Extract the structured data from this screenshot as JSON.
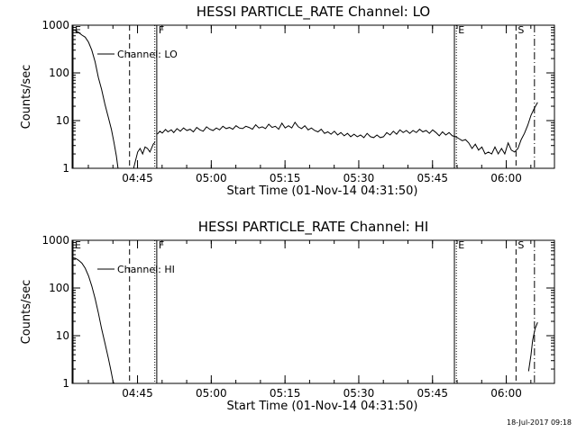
{
  "chart_data": [
    {
      "type": "line",
      "title": "HESSI PARTICLE_RATE Channel: LO",
      "xlabel": "Start Time (01-Nov-14 04:31:50)",
      "ylabel": "Counts/sec",
      "y_scale": "log",
      "ylim": [
        1,
        1000
      ],
      "xlim": [
        0,
        5886
      ],
      "x_ticks": [
        {
          "t": 798,
          "label": "04:45"
        },
        {
          "t": 1698,
          "label": "05:00"
        },
        {
          "t": 2598,
          "label": "05:15"
        },
        {
          "t": 3498,
          "label": "05:30"
        },
        {
          "t": 4398,
          "label": "05:45"
        },
        {
          "t": 5298,
          "label": "06:00"
        }
      ],
      "y_ticks": [
        {
          "v": 1,
          "label": "1"
        },
        {
          "v": 10,
          "label": "10"
        },
        {
          "v": 100,
          "label": "100"
        },
        {
          "v": 1000,
          "label": "1000"
        }
      ],
      "legend": "Channel: LO",
      "markers": [
        {
          "t": 0,
          "label": "E",
          "style": "solid"
        },
        {
          "t": 701,
          "label": "",
          "style": "dashed"
        },
        {
          "t": 1009,
          "label": "",
          "style": "dotted"
        },
        {
          "t": 1033,
          "label": "F",
          "style": "solid"
        },
        {
          "t": 4665,
          "label": "",
          "style": "solid"
        },
        {
          "t": 4689,
          "label": "E",
          "style": "dotted"
        },
        {
          "t": 5417,
          "label": "S",
          "style": "dashed"
        },
        {
          "t": 5642,
          "label": "",
          "style": "dashdot"
        }
      ],
      "series": [
        {
          "segments": [
            [
              [
                0,
                800
              ],
              [
                40,
                780
              ],
              [
                80,
                700
              ],
              [
                120,
                620
              ],
              [
                160,
                560
              ],
              [
                200,
                440
              ],
              [
                240,
                300
              ],
              [
                280,
                170
              ],
              [
                320,
                80
              ],
              [
                360,
                45
              ],
              [
                400,
                22
              ],
              [
                440,
                12
              ],
              [
                480,
                6.5
              ],
              [
                510,
                3.5
              ],
              [
                540,
                1.8
              ],
              [
                560,
                1.0
              ]
            ],
            [
              [
                750,
                1.0
              ],
              [
                800,
                2.2
              ],
              [
                830,
                2.6
              ],
              [
                860,
                2.0
              ],
              [
                890,
                2.8
              ],
              [
                920,
                2.6
              ],
              [
                950,
                2.2
              ],
              [
                990,
                3.2
              ],
              [
                1010,
                3.5
              ]
            ],
            [
              [
                1040,
                5.2
              ],
              [
                1070,
                6.0
              ],
              [
                1100,
                5.5
              ],
              [
                1140,
                6.5
              ],
              [
                1170,
                5.8
              ],
              [
                1210,
                6.4
              ],
              [
                1240,
                5.6
              ],
              [
                1280,
                6.8
              ],
              [
                1320,
                6.0
              ],
              [
                1360,
                7.0
              ],
              [
                1400,
                6.2
              ],
              [
                1440,
                6.6
              ],
              [
                1480,
                5.8
              ],
              [
                1520,
                7.2
              ],
              [
                1560,
                6.4
              ],
              [
                1600,
                6.0
              ],
              [
                1640,
                7.4
              ],
              [
                1680,
                6.6
              ],
              [
                1720,
                6.2
              ],
              [
                1760,
                7.0
              ],
              [
                1800,
                6.4
              ],
              [
                1840,
                7.6
              ],
              [
                1880,
                6.8
              ],
              [
                1920,
                7.2
              ],
              [
                1960,
                6.6
              ],
              [
                2000,
                7.8
              ],
              [
                2040,
                7.0
              ],
              [
                2080,
                6.8
              ],
              [
                2120,
                7.6
              ],
              [
                2160,
                7.2
              ],
              [
                2200,
                6.6
              ],
              [
                2240,
                8.2
              ],
              [
                2280,
                7.0
              ],
              [
                2320,
                7.4
              ],
              [
                2360,
                6.8
              ],
              [
                2400,
                8.4
              ],
              [
                2440,
                7.2
              ],
              [
                2480,
                7.6
              ],
              [
                2520,
                6.6
              ],
              [
                2560,
                8.8
              ],
              [
                2600,
                7.0
              ],
              [
                2640,
                7.8
              ],
              [
                2680,
                7.0
              ],
              [
                2720,
                9.2
              ],
              [
                2760,
                7.4
              ],
              [
                2800,
                6.8
              ],
              [
                2840,
                7.8
              ],
              [
                2880,
                6.4
              ],
              [
                2920,
                7.0
              ],
              [
                2960,
                6.2
              ],
              [
                3000,
                5.8
              ],
              [
                3040,
                6.6
              ],
              [
                3080,
                5.4
              ],
              [
                3120,
                5.8
              ],
              [
                3160,
                5.2
              ],
              [
                3200,
                6.0
              ],
              [
                3240,
                5.0
              ],
              [
                3280,
                5.6
              ],
              [
                3320,
                4.8
              ],
              [
                3360,
                5.4
              ],
              [
                3400,
                4.6
              ],
              [
                3440,
                5.2
              ],
              [
                3480,
                4.6
              ],
              [
                3520,
                5.0
              ],
              [
                3560,
                4.4
              ],
              [
                3600,
                5.4
              ],
              [
                3640,
                4.6
              ],
              [
                3680,
                4.4
              ],
              [
                3720,
                5.0
              ],
              [
                3760,
                4.4
              ],
              [
                3800,
                4.6
              ],
              [
                3840,
                5.6
              ],
              [
                3880,
                5.0
              ],
              [
                3920,
                6.0
              ],
              [
                3960,
                5.2
              ],
              [
                4000,
                6.4
              ],
              [
                4040,
                5.6
              ],
              [
                4080,
                6.2
              ],
              [
                4120,
                5.4
              ],
              [
                4160,
                6.2
              ],
              [
                4200,
                5.6
              ],
              [
                4240,
                6.6
              ],
              [
                4280,
                5.8
              ],
              [
                4320,
                6.2
              ],
              [
                4360,
                5.4
              ],
              [
                4400,
                6.4
              ],
              [
                4440,
                5.6
              ],
              [
                4480,
                4.8
              ],
              [
                4520,
                5.8
              ],
              [
                4560,
                5.0
              ],
              [
                4600,
                5.6
              ],
              [
                4640,
                4.8
              ],
              [
                4680,
                4.6
              ],
              [
                4720,
                4.2
              ],
              [
                4760,
                3.8
              ],
              [
                4800,
                4.0
              ],
              [
                4840,
                3.4
              ],
              [
                4880,
                2.6
              ],
              [
                4920,
                3.2
              ],
              [
                4960,
                2.4
              ],
              [
                5000,
                2.8
              ],
              [
                5040,
                2.0
              ],
              [
                5080,
                2.2
              ],
              [
                5120,
                2.0
              ],
              [
                5160,
                2.8
              ],
              [
                5200,
                2.0
              ],
              [
                5240,
                2.6
              ],
              [
                5280,
                2.0
              ],
              [
                5320,
                3.4
              ],
              [
                5360,
                2.4
              ],
              [
                5400,
                2.2
              ],
              [
                5440,
                2.6
              ],
              [
                5480,
                4.0
              ],
              [
                5520,
                5.4
              ],
              [
                5560,
                8.0
              ],
              [
                5600,
                13
              ],
              [
                5640,
                18
              ],
              [
                5680,
                24
              ]
            ]
          ]
        }
      ]
    },
    {
      "type": "line",
      "title": "HESSI PARTICLE_RATE Channel: HI",
      "xlabel": "Start Time (01-Nov-14 04:31:50)",
      "ylabel": "Counts/sec",
      "y_scale": "log",
      "ylim": [
        1,
        1000
      ],
      "xlim": [
        0,
        5886
      ],
      "x_ticks": [
        {
          "t": 798,
          "label": "04:45"
        },
        {
          "t": 1698,
          "label": "05:00"
        },
        {
          "t": 2598,
          "label": "05:15"
        },
        {
          "t": 3498,
          "label": "05:30"
        },
        {
          "t": 4398,
          "label": "05:45"
        },
        {
          "t": 5298,
          "label": "06:00"
        }
      ],
      "y_ticks": [
        {
          "v": 1,
          "label": "1"
        },
        {
          "v": 10,
          "label": "10"
        },
        {
          "v": 100,
          "label": "100"
        },
        {
          "v": 1000,
          "label": "1000"
        }
      ],
      "legend": "Channel: HI",
      "markers": [
        {
          "t": 0,
          "label": "E",
          "style": "solid"
        },
        {
          "t": 701,
          "label": "",
          "style": "dashed"
        },
        {
          "t": 1009,
          "label": "",
          "style": "dotted"
        },
        {
          "t": 1033,
          "label": "F",
          "style": "solid"
        },
        {
          "t": 4665,
          "label": "",
          "style": "solid"
        },
        {
          "t": 4689,
          "label": "E",
          "style": "dotted"
        },
        {
          "t": 5417,
          "label": "S",
          "style": "dashed"
        },
        {
          "t": 5642,
          "label": "",
          "style": "dashdot"
        }
      ],
      "series": [
        {
          "segments": [
            [
              [
                0,
                430
              ],
              [
                40,
                420
              ],
              [
                80,
                380
              ],
              [
                120,
                330
              ],
              [
                160,
                260
              ],
              [
                200,
                180
              ],
              [
                240,
                110
              ],
              [
                280,
                60
              ],
              [
                320,
                30
              ],
              [
                360,
                14
              ],
              [
                400,
                7
              ],
              [
                440,
                3.5
              ],
              [
                470,
                2
              ],
              [
                500,
                1.1
              ],
              [
                510,
                1.0
              ]
            ],
            [
              [
                5570,
                1.8
              ],
              [
                5600,
                4
              ],
              [
                5620,
                8
              ],
              [
                5650,
                14
              ],
              [
                5680,
                19
              ]
            ]
          ]
        }
      ]
    }
  ],
  "timestamp": "18-Jul-2017 09:18"
}
